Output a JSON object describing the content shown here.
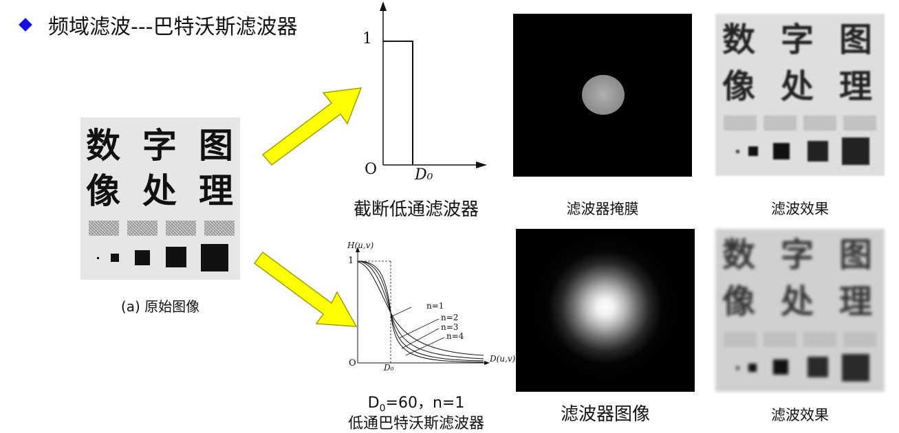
{
  "title": "频域滤波---巴特沃斯滤波器",
  "original": {
    "chars_row1": [
      "数",
      "字",
      "图"
    ],
    "chars_row2": [
      "像",
      "处",
      "理"
    ],
    "caption": "(a) 原始图像"
  },
  "ideal_plot": {
    "y_label": "1",
    "origin": "O",
    "cutoff": "D₀",
    "caption": "截断低通滤波器"
  },
  "mask": {
    "caption": "滤波器掩膜"
  },
  "result_top": {
    "chars_row1": [
      "数",
      "字",
      "图"
    ],
    "chars_row2": [
      "像",
      "处",
      "理"
    ],
    "caption": "滤波效果"
  },
  "butter_plot": {
    "y_axis": "H(u,v)",
    "y_tick": "1",
    "origin": "O",
    "x_axis": "D(u,v)",
    "cutoff": "D₀",
    "curves": [
      "n=1",
      "n=2",
      "n=3",
      "n=4"
    ],
    "caption_line1_prefix": "D",
    "caption_line1_sub": "0",
    "caption_line1_rest": "=60，n=1",
    "caption_line2": "低通巴特沃斯滤波器"
  },
  "filter_image": {
    "caption": "滤波器图像"
  },
  "result_bottom": {
    "chars_row1": [
      "数",
      "字",
      "图"
    ],
    "chars_row2": [
      "像",
      "处",
      "理"
    ],
    "caption": "滤波效果"
  },
  "colors": {
    "bullet": "#1010e0",
    "arrow_fill": "#ffff00",
    "arrow_stroke": "#a0a000"
  }
}
